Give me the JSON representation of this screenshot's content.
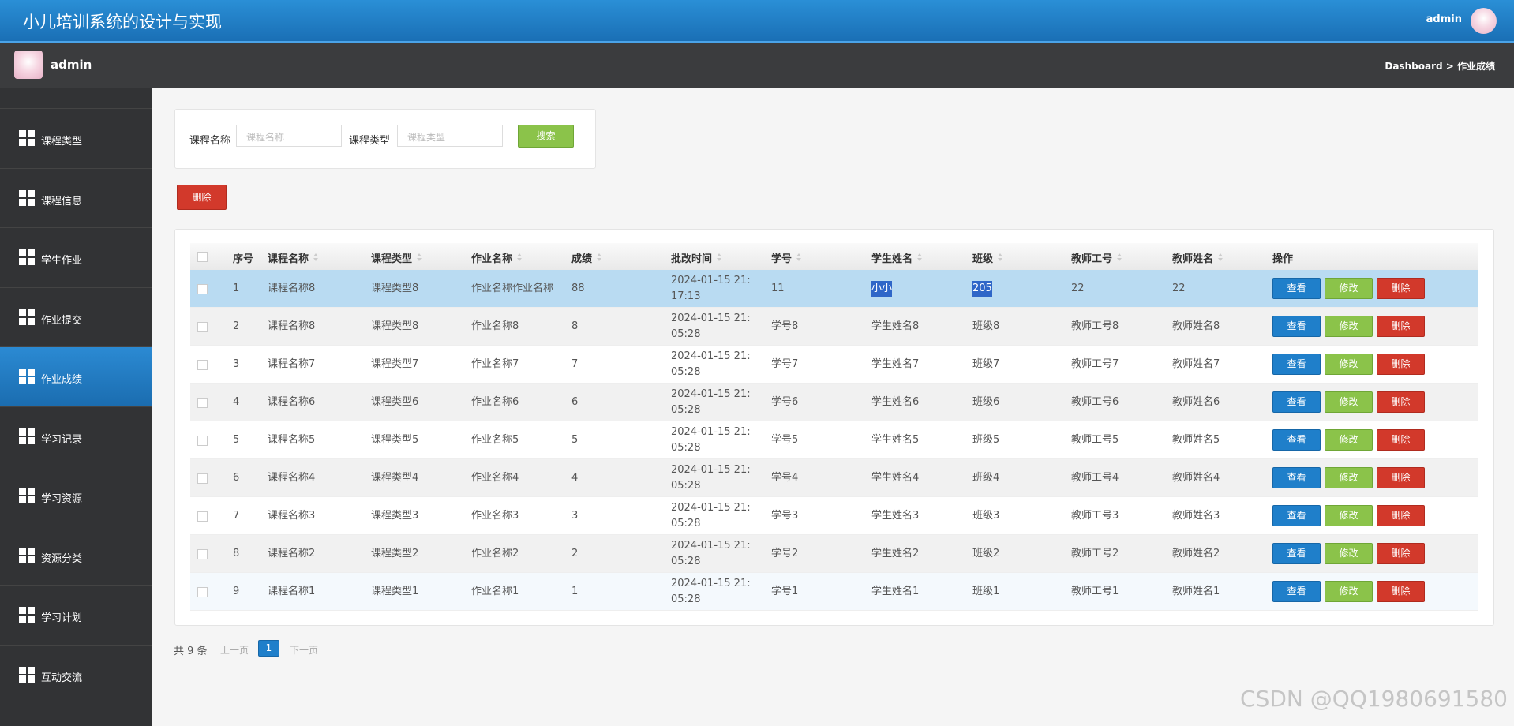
{
  "header": {
    "title": "小儿培训系统的设计与实现",
    "user": "admin"
  },
  "subheader": {
    "user": "admin",
    "breadcrumb": "Dashboard > 作业成绩"
  },
  "sidebar": {
    "items": [
      "课程类型",
      "课程信息",
      "学生作业",
      "作业提交",
      "作业成绩",
      "学习记录",
      "学习资源",
      "资源分类",
      "学习计划",
      "互动交流"
    ],
    "active": 4
  },
  "search": {
    "fields": [
      {
        "label": "课程名称",
        "placeholder": "课程名称"
      },
      {
        "label": "课程类型",
        "placeholder": "课程类型"
      }
    ],
    "button": "搜索"
  },
  "delete_button": "删除",
  "table": {
    "columns": [
      "序号",
      "课程名称",
      "课程类型",
      "作业名称",
      "成绩",
      "批改时间",
      "学号",
      "学生姓名",
      "班级",
      "教师工号",
      "教师姓名",
      "操作"
    ],
    "rows": [
      [
        "1",
        "课程名称8",
        "课程类型8",
        "作业名称作业名称",
        "88",
        "2024-01-15 21:17:13",
        "11",
        "小小",
        "205",
        "22",
        "22"
      ],
      [
        "2",
        "课程名称8",
        "课程类型8",
        "作业名称8",
        "8",
        "2024-01-15 21:05:28",
        "学号8",
        "学生姓名8",
        "班级8",
        "教师工号8",
        "教师姓名8"
      ],
      [
        "3",
        "课程名称7",
        "课程类型7",
        "作业名称7",
        "7",
        "2024-01-15 21:05:28",
        "学号7",
        "学生姓名7",
        "班级7",
        "教师工号7",
        "教师姓名7"
      ],
      [
        "4",
        "课程名称6",
        "课程类型6",
        "作业名称6",
        "6",
        "2024-01-15 21:05:28",
        "学号6",
        "学生姓名6",
        "班级6",
        "教师工号6",
        "教师姓名6"
      ],
      [
        "5",
        "课程名称5",
        "课程类型5",
        "作业名称5",
        "5",
        "2024-01-15 21:05:28",
        "学号5",
        "学生姓名5",
        "班级5",
        "教师工号5",
        "教师姓名5"
      ],
      [
        "6",
        "课程名称4",
        "课程类型4",
        "作业名称4",
        "4",
        "2024-01-15 21:05:28",
        "学号4",
        "学生姓名4",
        "班级4",
        "教师工号4",
        "教师姓名4"
      ],
      [
        "7",
        "课程名称3",
        "课程类型3",
        "作业名称3",
        "3",
        "2024-01-15 21:05:28",
        "学号3",
        "学生姓名3",
        "班级3",
        "教师工号3",
        "教师姓名3"
      ],
      [
        "8",
        "课程名称2",
        "课程类型2",
        "作业名称2",
        "2",
        "2024-01-15 21:05:28",
        "学号2",
        "学生姓名2",
        "班级2",
        "教师工号2",
        "教师姓名2"
      ],
      [
        "9",
        "课程名称1",
        "课程类型1",
        "作业名称1",
        "1",
        "2024-01-15 21:05:28",
        "学号1",
        "学生姓名1",
        "班级1",
        "教师工号1",
        "教师姓名1"
      ]
    ],
    "actions": [
      "查看",
      "修改",
      "删除"
    ]
  },
  "pagination": {
    "total": "共 9 条",
    "prev": "上一页",
    "page": "1",
    "next": "下一页"
  },
  "watermark": "CSDN @QQ1980691580"
}
